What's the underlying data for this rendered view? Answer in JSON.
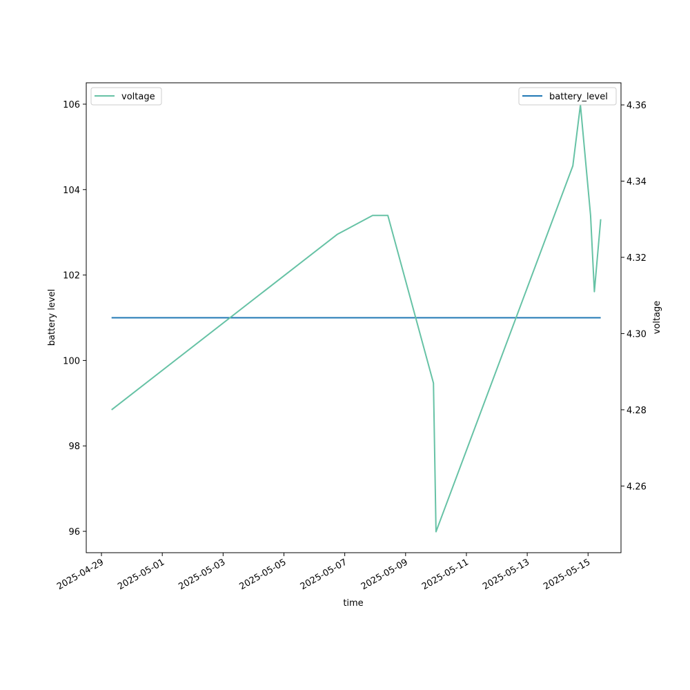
{
  "chart_data": {
    "type": "line",
    "xlabel": "time",
    "ylabel_left": "battery level",
    "ylabel_right": "voltage",
    "x_ticks": [
      "2025-04-29",
      "2025-05-01",
      "2025-05-03",
      "2025-05-05",
      "2025-05-07",
      "2025-05-09",
      "2025-05-11",
      "2025-05-13",
      "2025-05-15"
    ],
    "xlim": [
      "2025-04-28T12:00",
      "2025-05-16T02:00"
    ],
    "y_left_ticks": [
      "96",
      "98",
      "100",
      "102",
      "104",
      "106"
    ],
    "y_left_lim": [
      95.5,
      106.5
    ],
    "y_right_ticks": [
      "4.26",
      "4.28",
      "4.30",
      "4.32",
      "4.34",
      "4.36"
    ],
    "y_right_lim": [
      4.2425,
      4.3658
    ],
    "grid": false,
    "series": [
      {
        "name": "battery_level",
        "axis": "left",
        "color": "#1f77b4",
        "legend": "top-right",
        "points": [
          {
            "x": "2025-04-29T08:00",
            "y": 101
          },
          {
            "x": "2025-05-15T10:00",
            "y": 101
          }
        ]
      },
      {
        "name": "voltage",
        "axis": "right",
        "color": "#66c2a5",
        "legend": "top-left",
        "points": [
          {
            "x": "2025-04-29T08:00",
            "y": 4.28
          },
          {
            "x": "2025-05-06T18:00",
            "y": 4.326
          },
          {
            "x": "2025-05-07T22:00",
            "y": 4.331
          },
          {
            "x": "2025-05-08T10:00",
            "y": 4.331
          },
          {
            "x": "2025-05-09T22:00",
            "y": 4.287
          },
          {
            "x": "2025-05-10T00:00",
            "y": 4.248
          },
          {
            "x": "2025-05-14T12:00",
            "y": 4.344
          },
          {
            "x": "2025-05-14T18:00",
            "y": 4.36
          },
          {
            "x": "2025-05-15T02:00",
            "y": 4.331
          },
          {
            "x": "2025-05-15T05:00",
            "y": 4.311
          },
          {
            "x": "2025-05-15T10:00",
            "y": 4.33
          }
        ]
      }
    ]
  }
}
